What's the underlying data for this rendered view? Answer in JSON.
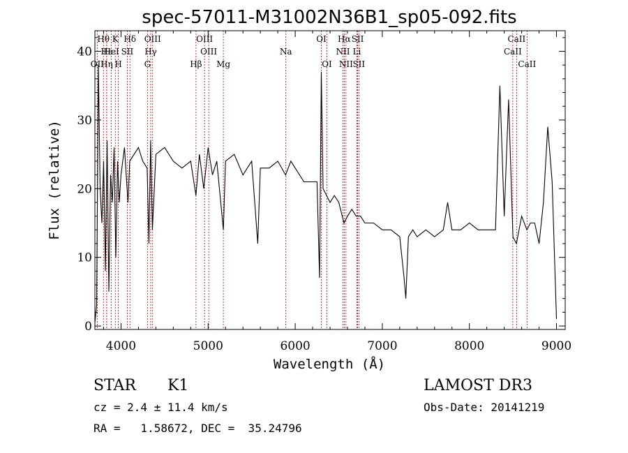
{
  "chart_data": {
    "type": "line",
    "title": "spec-57011-M31002N36B1_sp05-092.fits",
    "xlabel": "Wavelength (Å)",
    "ylabel": "Flux (relative)",
    "xlim": [
      3700,
      9100
    ],
    "ylim": [
      -0.5,
      43
    ],
    "x_ticks": [
      4000,
      5000,
      6000,
      7000,
      8000,
      9000
    ],
    "y_ticks": [
      0,
      10,
      20,
      30,
      40
    ],
    "series": [
      {
        "name": "flux",
        "x": [
          3700,
          3720,
          3740,
          3760,
          3780,
          3800,
          3820,
          3840,
          3860,
          3880,
          3900,
          3920,
          3940,
          3960,
          3980,
          4000,
          4040,
          4080,
          4100,
          4150,
          4200,
          4250,
          4300,
          4320,
          4340,
          4360,
          4400,
          4500,
          4600,
          4700,
          4800,
          4860,
          4900,
          4950,
          5000,
          5050,
          5100,
          5175,
          5200,
          5300,
          5400,
          5500,
          5570,
          5600,
          5700,
          5800,
          5890,
          5950,
          6000,
          6100,
          6200,
          6250,
          6280,
          6300,
          6320,
          6360,
          6400,
          6450,
          6500,
          6560,
          6600,
          6650,
          6700,
          6750,
          6800,
          6900,
          7000,
          7100,
          7200,
          7250,
          7270,
          7300,
          7350,
          7400,
          7500,
          7600,
          7700,
          7750,
          7800,
          7900,
          8000,
          8100,
          8200,
          8300,
          8350,
          8400,
          8450,
          8500,
          8540,
          8600,
          8660,
          8700,
          8750,
          8800,
          8850,
          8900,
          8950,
          9000
        ],
        "y": [
          0.5,
          3,
          38,
          20,
          15,
          24,
          8,
          27,
          5,
          22,
          18,
          26,
          10,
          24,
          18,
          22,
          26,
          18,
          24,
          25,
          26,
          24,
          23,
          12,
          27,
          14,
          25,
          26,
          24,
          23,
          24,
          19,
          25,
          20,
          26,
          22,
          24,
          14,
          24,
          25,
          22,
          24,
          12,
          23,
          23,
          24,
          22,
          24,
          23,
          21,
          21,
          21,
          7,
          37,
          20,
          19,
          18,
          19,
          18,
          15,
          16,
          17,
          16,
          16,
          15,
          15,
          14,
          14,
          13,
          7,
          4,
          13,
          14,
          13,
          14,
          13,
          14,
          18,
          14,
          14,
          15,
          14,
          14,
          14,
          35,
          16,
          33,
          13,
          12,
          16,
          14,
          15,
          15,
          12,
          18,
          29,
          21,
          1
        ]
      }
    ],
    "lines": [
      {
        "label": "Hθ",
        "x": 3798,
        "row": 0
      },
      {
        "label": "OII",
        "x": 3727,
        "row": 2
      },
      {
        "label": "Hε",
        "x": 3835,
        "row": 1
      },
      {
        "label": "HeI",
        "x": 3889,
        "row": 1
      },
      {
        "label": "Hη",
        "x": 3835,
        "row": 2
      },
      {
        "label": "K",
        "x": 3934,
        "row": 0
      },
      {
        "label": "H",
        "x": 3969,
        "row": 2
      },
      {
        "label": "SII",
        "x": 4072,
        "row": 1
      },
      {
        "label": "Hδ",
        "x": 4102,
        "row": 0
      },
      {
        "label": "OIII",
        "x": 4363,
        "row": 0
      },
      {
        "label": "Hγ",
        "x": 4341,
        "row": 1
      },
      {
        "label": "G",
        "x": 4304,
        "row": 2
      },
      {
        "label": "Hβ",
        "x": 4861,
        "row": 2
      },
      {
        "label": "OIII",
        "x": 4959,
        "row": 0
      },
      {
        "label": "OIII",
        "x": 5007,
        "row": 1
      },
      {
        "label": "Mg",
        "x": 5175,
        "row": 2
      },
      {
        "label": "Na",
        "x": 5893,
        "row": 1
      },
      {
        "label": "OI",
        "x": 6300,
        "row": 0
      },
      {
        "label": "OI",
        "x": 6364,
        "row": 2
      },
      {
        "label": "Hα",
        "x": 6563,
        "row": 0
      },
      {
        "label": "NII",
        "x": 6548,
        "row": 1
      },
      {
        "label": "NII",
        "x": 6583,
        "row": 2
      },
      {
        "label": "SII",
        "x": 6717,
        "row": 0
      },
      {
        "label": "Li",
        "x": 6708,
        "row": 1
      },
      {
        "label": "SII",
        "x": 6731,
        "row": 2
      },
      {
        "label": "CaII",
        "x": 8542,
        "row": 0
      },
      {
        "label": "CaII",
        "x": 8498,
        "row": 1
      },
      {
        "label": "CaII",
        "x": 8662,
        "row": 2
      }
    ]
  },
  "info": {
    "object_class": "STAR",
    "subclass": "K1",
    "survey": "LAMOST DR3",
    "cz": "cz = 2.4 ± 11.4 km/s",
    "obs_date": "Obs-Date: 20141219",
    "coords": "RA =   1.58672, DEC =  35.24796"
  }
}
